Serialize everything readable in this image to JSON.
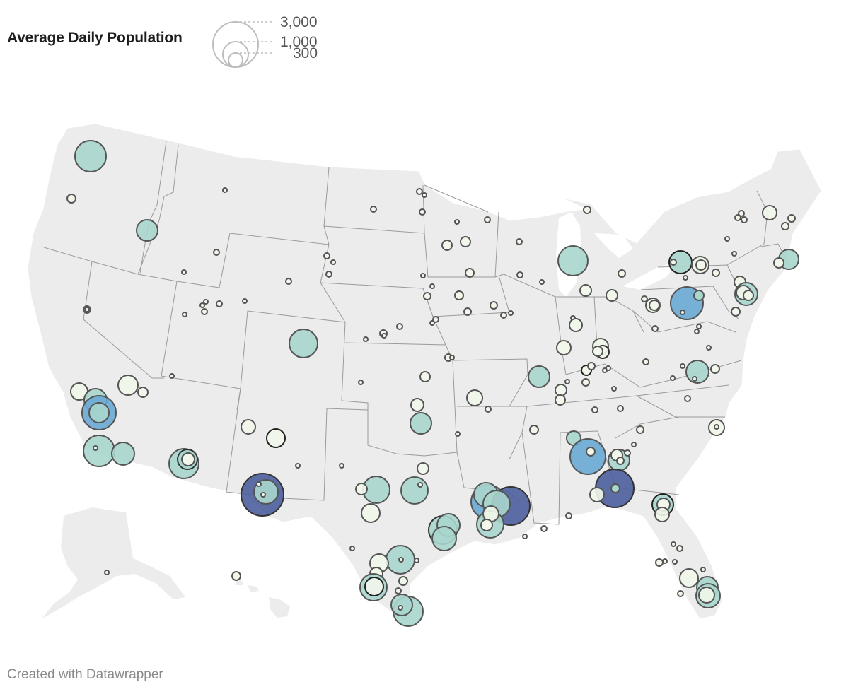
{
  "legend": {
    "title": "Average Daily Population",
    "sizes": [
      {
        "label": "3,000",
        "value": 3000
      },
      {
        "label": "1,000",
        "value": 1000
      },
      {
        "label": "300",
        "value": 300
      }
    ]
  },
  "attribution": "Created with Datawrapper",
  "colors": {
    "land": "#ececec",
    "border": "#9a9a9a",
    "bubble_stroke": "#555555",
    "scale": [
      "#f1f7ea",
      "#a9d6cd",
      "#6aaad4",
      "#4d5f9e"
    ]
  },
  "map": {
    "projection": "Albers USA",
    "regions": [
      "Contiguous United States",
      "Alaska",
      "Hawaii"
    ]
  }
}
